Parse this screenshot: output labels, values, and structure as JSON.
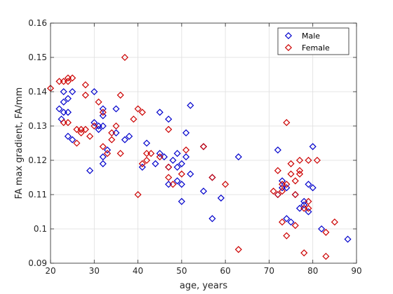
{
  "chart_data": {
    "type": "scatter",
    "title": "",
    "xlabel": "age, years",
    "ylabel": "FA max gradient, FA/mm",
    "xlim": [
      20,
      90
    ],
    "ylim": [
      0.09,
      0.16
    ],
    "xticks": [
      "20",
      "30",
      "40",
      "50",
      "60",
      "70",
      "80",
      "90"
    ],
    "yticks": [
      "0.09",
      "0.1",
      "0.11",
      "0.12",
      "0.13",
      "0.14",
      "0.15",
      "0.16"
    ],
    "grid": true,
    "legend_position": "top-right",
    "marker": "diamond-open",
    "series": [
      {
        "name": "Male",
        "color": "#0000cc",
        "points": [
          [
            22,
            0.135
          ],
          [
            22.5,
            0.132
          ],
          [
            23,
            0.134
          ],
          [
            23,
            0.137
          ],
          [
            23,
            0.14
          ],
          [
            24,
            0.138
          ],
          [
            24,
            0.134
          ],
          [
            24,
            0.127
          ],
          [
            25,
            0.14
          ],
          [
            25,
            0.126
          ],
          [
            29,
            0.117
          ],
          [
            30,
            0.14
          ],
          [
            30,
            0.131
          ],
          [
            31,
            0.129
          ],
          [
            31,
            0.13
          ],
          [
            32,
            0.133
          ],
          [
            32,
            0.135
          ],
          [
            32,
            0.13
          ],
          [
            32,
            0.121
          ],
          [
            32,
            0.119
          ],
          [
            33,
            0.123
          ],
          [
            35,
            0.128
          ],
          [
            35,
            0.135
          ],
          [
            37,
            0.126
          ],
          [
            38,
            0.127
          ],
          [
            41,
            0.118
          ],
          [
            42,
            0.125
          ],
          [
            44,
            0.119
          ],
          [
            45,
            0.134
          ],
          [
            45,
            0.122
          ],
          [
            46,
            0.121
          ],
          [
            47,
            0.132
          ],
          [
            47,
            0.118
          ],
          [
            47,
            0.113
          ],
          [
            48,
            0.12
          ],
          [
            49,
            0.122
          ],
          [
            49,
            0.118
          ],
          [
            49,
            0.114
          ],
          [
            50,
            0.119
          ],
          [
            50,
            0.113
          ],
          [
            50,
            0.108
          ],
          [
            51,
            0.128
          ],
          [
            51,
            0.121
          ],
          [
            52,
            0.136
          ],
          [
            52,
            0.116
          ],
          [
            55,
            0.111
          ],
          [
            55,
            0.124
          ],
          [
            57,
            0.115
          ],
          [
            57,
            0.103
          ],
          [
            59,
            0.109
          ],
          [
            63,
            0.121
          ],
          [
            72,
            0.123
          ],
          [
            72,
            0.11
          ],
          [
            73,
            0.112
          ],
          [
            73,
            0.114
          ],
          [
            74,
            0.112
          ],
          [
            74,
            0.103
          ],
          [
            75,
            0.102
          ],
          [
            76,
            0.11
          ],
          [
            77,
            0.106
          ],
          [
            78,
            0.107
          ],
          [
            78,
            0.108
          ],
          [
            79,
            0.113
          ],
          [
            79,
            0.105
          ],
          [
            80,
            0.124
          ],
          [
            80,
            0.112
          ],
          [
            82,
            0.1
          ],
          [
            88,
            0.097
          ]
        ]
      },
      {
        "name": "Female",
        "color": "#cc0000",
        "points": [
          [
            20,
            0.141
          ],
          [
            22,
            0.143
          ],
          [
            23,
            0.143
          ],
          [
            23,
            0.131
          ],
          [
            24,
            0.144
          ],
          [
            24,
            0.143
          ],
          [
            24,
            0.131
          ],
          [
            25,
            0.144
          ],
          [
            26,
            0.129
          ],
          [
            26,
            0.125
          ],
          [
            27,
            0.129
          ],
          [
            27,
            0.128
          ],
          [
            28,
            0.129
          ],
          [
            28,
            0.139
          ],
          [
            28,
            0.142
          ],
          [
            29,
            0.127
          ],
          [
            30,
            0.13
          ],
          [
            31,
            0.137
          ],
          [
            32,
            0.134
          ],
          [
            32,
            0.124
          ],
          [
            33,
            0.122
          ],
          [
            34,
            0.126
          ],
          [
            34,
            0.128
          ],
          [
            35,
            0.13
          ],
          [
            36,
            0.139
          ],
          [
            36,
            0.122
          ],
          [
            37,
            0.15
          ],
          [
            39,
            0.132
          ],
          [
            40,
            0.135
          ],
          [
            40,
            0.11
          ],
          [
            41,
            0.134
          ],
          [
            41,
            0.119
          ],
          [
            42,
            0.122
          ],
          [
            42,
            0.12
          ],
          [
            43,
            0.122
          ],
          [
            45,
            0.121
          ],
          [
            47,
            0.129
          ],
          [
            47,
            0.118
          ],
          [
            47,
            0.115
          ],
          [
            48,
            0.113
          ],
          [
            50,
            0.116
          ],
          [
            51,
            0.123
          ],
          [
            55,
            0.124
          ],
          [
            57,
            0.115
          ],
          [
            60,
            0.113
          ],
          [
            63,
            0.094
          ],
          [
            71,
            0.111
          ],
          [
            72,
            0.117
          ],
          [
            72,
            0.11
          ],
          [
            73,
            0.113
          ],
          [
            73,
            0.111
          ],
          [
            73,
            0.102
          ],
          [
            74,
            0.131
          ],
          [
            74,
            0.113
          ],
          [
            74,
            0.098
          ],
          [
            75,
            0.119
          ],
          [
            75,
            0.116
          ],
          [
            76,
            0.11
          ],
          [
            76,
            0.114
          ],
          [
            76,
            0.101
          ],
          [
            77,
            0.117
          ],
          [
            77,
            0.12
          ],
          [
            77,
            0.116
          ],
          [
            78,
            0.106
          ],
          [
            78,
            0.093
          ],
          [
            79,
            0.12
          ],
          [
            79,
            0.108
          ],
          [
            79,
            0.106
          ],
          [
            81,
            0.12
          ],
          [
            83,
            0.099
          ],
          [
            83,
            0.092
          ],
          [
            85,
            0.102
          ]
        ]
      }
    ]
  }
}
